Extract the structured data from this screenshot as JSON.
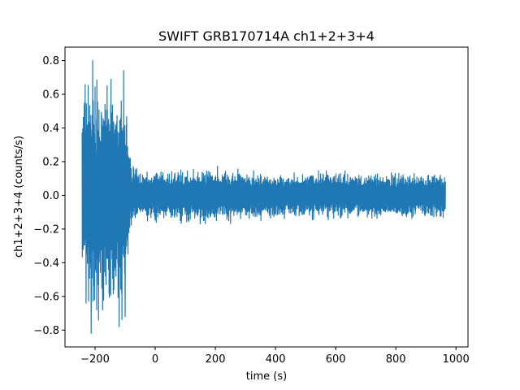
{
  "chart_data": {
    "type": "line",
    "title": "SWIFT GRB170714A ch1+2+3+4",
    "xlabel": "time (s)",
    "ylabel": "ch1+2+3+4 (counts/s)",
    "xlim": [
      -300,
      1040
    ],
    "ylim": [
      -0.9,
      0.88
    ],
    "xticks": [
      -200,
      0,
      200,
      400,
      600,
      800,
      1000
    ],
    "xtick_labels": [
      "−200",
      "0",
      "200",
      "400",
      "600",
      "800",
      "1000"
    ],
    "yticks": [
      -0.8,
      -0.6,
      -0.4,
      -0.2,
      0.0,
      0.2,
      0.4,
      0.6,
      0.8
    ],
    "ytick_labels": [
      "−0.8",
      "−0.6",
      "−0.4",
      "−0.2",
      "0.0",
      "0.2",
      "0.4",
      "0.6",
      "0.8"
    ],
    "grid": false,
    "series": [
      {
        "color": "#1f77b4",
        "x_start": -243,
        "x_end": 965,
        "envelope": {
          "x": [
            -243,
            -225,
            -200,
            -175,
            -150,
            -125,
            -105,
            -95,
            -85,
            -70,
            -50,
            -25,
            0,
            100,
            200,
            300,
            400,
            500,
            600,
            700,
            800,
            900,
            965
          ],
          "amplitude": [
            0.42,
            0.48,
            0.52,
            0.5,
            0.5,
            0.5,
            0.52,
            0.38,
            0.2,
            0.13,
            0.11,
            0.11,
            0.11,
            0.12,
            0.12,
            0.11,
            0.1,
            0.1,
            0.1,
            0.1,
            0.1,
            0.1,
            0.1
          ]
        },
        "peaks": [
          {
            "x": -208,
            "y": 0.8
          },
          {
            "x": -213,
            "y": -0.82
          },
          {
            "x": -105,
            "y": 0.74
          },
          {
            "x": -120,
            "y": -0.78
          },
          {
            "x": -235,
            "y": 0.55
          },
          {
            "x": -230,
            "y": -0.64
          },
          {
            "x": -100,
            "y": -0.72
          },
          {
            "x": -160,
            "y": 0.65
          },
          {
            "x": -175,
            "y": -0.68
          }
        ]
      }
    ]
  }
}
